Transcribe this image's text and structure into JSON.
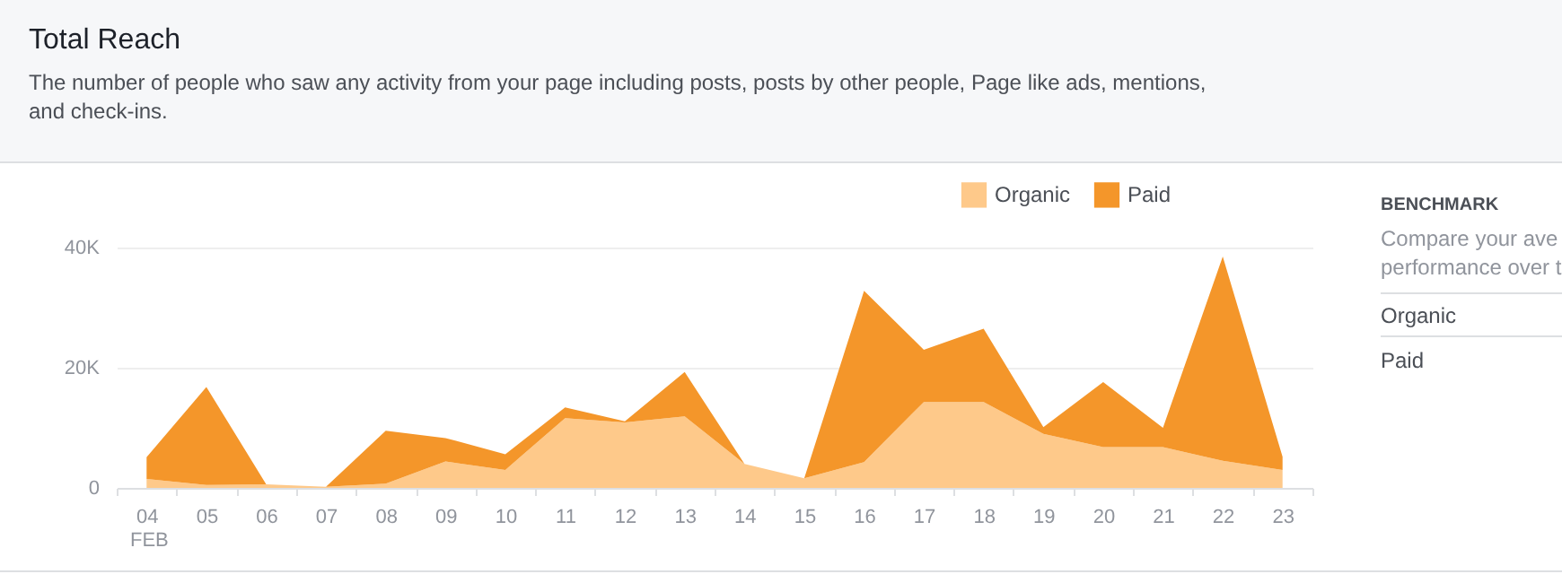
{
  "chart_data": [
    {
      "type": "area",
      "title": "Total Reach",
      "subtitle": "The number of people who saw any activity from your page including posts, posts by other people, Page like ads, mentions, and check-ins.",
      "xlabel": "FEB",
      "categories": [
        "04",
        "05",
        "06",
        "07",
        "08",
        "09",
        "10",
        "11",
        "12",
        "13",
        "14",
        "15",
        "16",
        "17",
        "18",
        "19",
        "20",
        "21",
        "22",
        "23"
      ],
      "stacked": true,
      "series": [
        {
          "name": "Organic",
          "color": "#fec98a",
          "values": [
            1500,
            500,
            600,
            200,
            700,
            4400,
            3000,
            11600,
            10900,
            11900,
            4000,
            1600,
            4300,
            14300,
            14300,
            9000,
            6800,
            6800,
            4500,
            3000
          ]
        },
        {
          "name": "Paid",
          "color": "#f4962a",
          "values": [
            3600,
            16300,
            0,
            0,
            8800,
            3900,
            2600,
            1800,
            200,
            7400,
            0,
            0,
            28500,
            8700,
            12200,
            1100,
            10800,
            3200,
            34000,
            2200
          ]
        }
      ],
      "ylim": [
        0,
        40000
      ],
      "yticks": [
        0,
        {
          "value": 20000,
          "label": "20K"
        },
        {
          "value": 40000,
          "label": "40K"
        }
      ],
      "grid": "y",
      "legend": "top right"
    },
    {
      "type": "other",
      "title": "BENCHMARK",
      "annotations": [
        "Compare your ave",
        "performance over t",
        "Organic",
        "Paid"
      ]
    }
  ]
}
